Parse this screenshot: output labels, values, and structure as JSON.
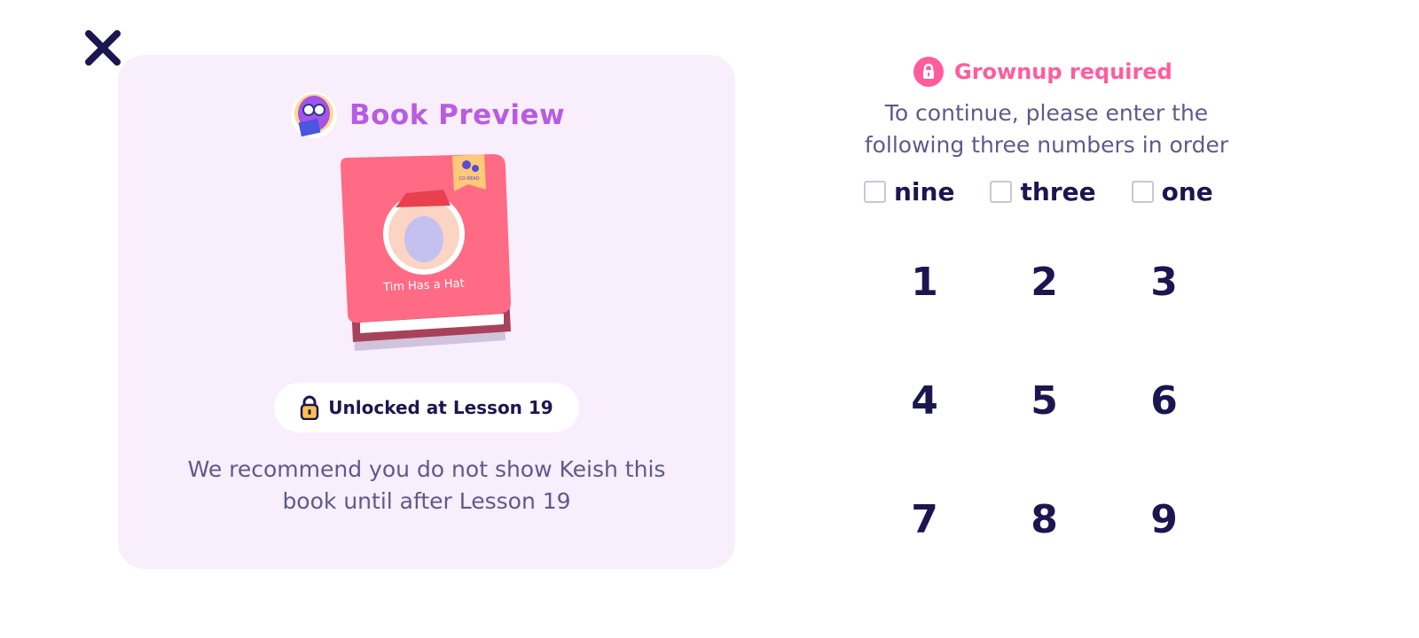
{
  "close_icon": "close-icon",
  "preview": {
    "title": "Book Preview",
    "book_title": "Tim Has a Hat",
    "book_badge": "CO-READ",
    "unlock_label": "Unlocked at Lesson 19",
    "recommendation_line1": "We recommend you do not show Keish this",
    "recommendation_line2": "book until after Lesson 19"
  },
  "gate": {
    "heading": "Grownup required",
    "instruction_line1": "To continue, please enter the",
    "instruction_line2": "following three numbers in order",
    "targets": [
      "nine",
      "three",
      "one"
    ],
    "keys": [
      "1",
      "2",
      "3",
      "4",
      "5",
      "6",
      "7",
      "8",
      "9"
    ]
  },
  "colors": {
    "panel": "#f8eefc",
    "title": "#b85ce0",
    "accent": "#ff5c9e",
    "text": "#1c1650",
    "muted": "#5f5a8a"
  }
}
